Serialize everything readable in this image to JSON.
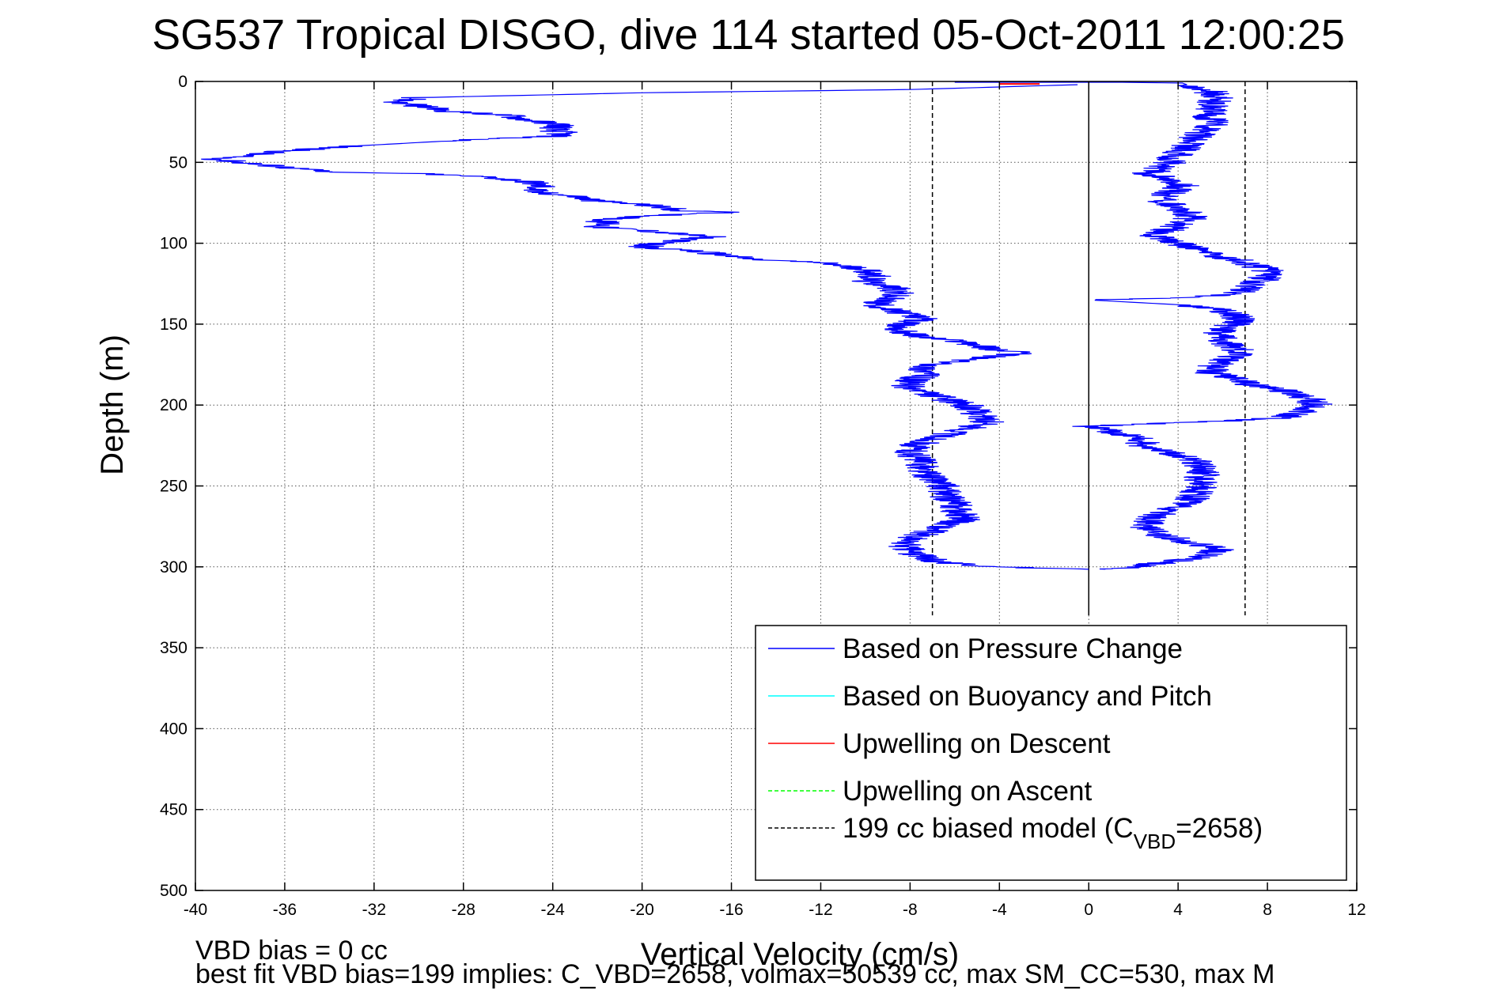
{
  "chart_data": {
    "type": "line",
    "title": "SG537 Tropical DISGO, dive 114 started 05-Oct-2011 12:00:25",
    "xlabel": "Vertical Velocity (cm/s)",
    "ylabel": "Depth (m)",
    "xlim": [
      -40,
      12
    ],
    "ylim": [
      0,
      500
    ],
    "y_reversed": true,
    "grid": true,
    "legend_position": "bottom-right",
    "xticks": [
      "-40",
      "-36",
      "-32",
      "-28",
      "-24",
      "-20",
      "-16",
      "-12",
      "-8",
      "-4",
      "0",
      "4",
      "8",
      "12"
    ],
    "yticks": [
      "0",
      "50",
      "100",
      "150",
      "200",
      "250",
      "300",
      "350",
      "400",
      "450",
      "500"
    ],
    "footnotes": [
      "VBD bias = 0 cc",
      "best fit VBD bias=199 implies: C_VBD=2658, volmax=50539 cc, max SM_CC=530, max M"
    ],
    "legend": [
      {
        "label": "Based on Pressure Change",
        "color": "#0000ff",
        "dash": "solid"
      },
      {
        "label": "Based on Buoyancy and Pitch",
        "color": "#00ffff",
        "dash": "solid"
      },
      {
        "label": "Upwelling on Descent",
        "color": "#ff0000",
        "dash": "solid"
      },
      {
        "label": "Upwelling on Ascent",
        "color": "#00ff00",
        "dash": "dashed"
      },
      {
        "label": "199 cc biased model (C",
        "sub": "VBD",
        "suffix": "=2658)",
        "color": "#000000",
        "dash": "dashed"
      }
    ],
    "series": [
      {
        "name": "Based on Pressure Change",
        "color": "#0000ff",
        "descent": [
          [
            -0.5,
            2
          ],
          [
            -8,
            5
          ],
          [
            -20,
            7
          ],
          [
            -30,
            10
          ],
          [
            -31,
            13
          ],
          [
            -30,
            15
          ],
          [
            -29,
            18
          ],
          [
            -26,
            21
          ],
          [
            -25,
            24
          ],
          [
            -23.5,
            27
          ],
          [
            -24,
            30
          ],
          [
            -23.5,
            32
          ],
          [
            -24,
            34
          ],
          [
            -26,
            35
          ],
          [
            -29,
            37
          ],
          [
            -33,
            40
          ],
          [
            -36,
            43
          ],
          [
            -38,
            46
          ],
          [
            -39,
            48
          ],
          [
            -38,
            50
          ],
          [
            -36,
            53
          ],
          [
            -34,
            56
          ],
          [
            -30,
            57
          ],
          [
            -27,
            59
          ],
          [
            -25,
            62
          ],
          [
            -24.5,
            65
          ],
          [
            -25,
            68
          ],
          [
            -23,
            71
          ],
          [
            -22,
            74
          ],
          [
            -20,
            76
          ],
          [
            -19,
            78
          ],
          [
            -18,
            80
          ],
          [
            -16,
            81
          ],
          [
            -18,
            82
          ],
          [
            -20.5,
            84
          ],
          [
            -22,
            86
          ],
          [
            -21.5,
            88
          ],
          [
            -22,
            90
          ],
          [
            -20,
            92
          ],
          [
            -18.5,
            94
          ],
          [
            -17,
            96
          ],
          [
            -18,
            98
          ],
          [
            -19.5,
            100
          ],
          [
            -20,
            103
          ],
          [
            -18,
            104
          ],
          [
            -16.5,
            107
          ],
          [
            -15,
            110
          ],
          [
            -12,
            112
          ],
          [
            -10,
            116
          ],
          [
            -9.5,
            120
          ],
          [
            -10,
            124
          ],
          [
            -9,
            126
          ],
          [
            -8.5,
            130
          ],
          [
            -9,
            134
          ],
          [
            -9.5,
            137
          ],
          [
            -9,
            141
          ],
          [
            -8,
            144
          ],
          [
            -7.5,
            147
          ],
          [
            -8.5,
            150
          ],
          [
            -8.5,
            154
          ],
          [
            -7.5,
            158
          ],
          [
            -5.5,
            161
          ],
          [
            -4.5,
            165
          ],
          [
            -3,
            168
          ],
          [
            -5,
            171
          ],
          [
            -6.5,
            174
          ],
          [
            -7.5,
            177
          ],
          [
            -7.2,
            180
          ],
          [
            -7.8,
            184
          ],
          [
            -8.2,
            188
          ],
          [
            -7.5,
            192
          ],
          [
            -6.5,
            196
          ],
          [
            -5.5,
            200
          ],
          [
            -5,
            205
          ],
          [
            -4.5,
            210
          ],
          [
            -5.5,
            215
          ],
          [
            -6.8,
            220
          ],
          [
            -7.8,
            225
          ],
          [
            -8,
            230
          ],
          [
            -7.5,
            235
          ],
          [
            -7.5,
            240
          ],
          [
            -7,
            245
          ],
          [
            -6.5,
            250
          ],
          [
            -6.5,
            255
          ],
          [
            -6,
            260
          ],
          [
            -6,
            265
          ],
          [
            -5.5,
            270
          ],
          [
            -6.5,
            275
          ],
          [
            -7.5,
            280
          ],
          [
            -8.2,
            284
          ],
          [
            -8.2,
            288
          ],
          [
            -7.8,
            292
          ],
          [
            -7,
            296
          ],
          [
            -6,
            298
          ],
          [
            -4,
            300
          ],
          [
            -2,
            301
          ],
          [
            0,
            301.5
          ]
        ],
        "ascent": [
          [
            0,
            301.5
          ],
          [
            1.5,
            301
          ],
          [
            2.5,
            299
          ],
          [
            3.5,
            297
          ],
          [
            4.5,
            295
          ],
          [
            5.5,
            292
          ],
          [
            5.8,
            289
          ],
          [
            5,
            286
          ],
          [
            4,
            283
          ],
          [
            3,
            280
          ],
          [
            2.5,
            275
          ],
          [
            2.8,
            270
          ],
          [
            3.5,
            265
          ],
          [
            4.5,
            260
          ],
          [
            4.8,
            255
          ],
          [
            5,
            250
          ],
          [
            5,
            245
          ],
          [
            5.2,
            240
          ],
          [
            4.8,
            235
          ],
          [
            3.8,
            230
          ],
          [
            2.5,
            225
          ],
          [
            2.2,
            220
          ],
          [
            0,
            213
          ],
          [
            2,
            212
          ],
          [
            4,
            211
          ],
          [
            6,
            210
          ],
          [
            8.5,
            208
          ],
          [
            9.5,
            205
          ],
          [
            10.2,
            200
          ],
          [
            9.8,
            196
          ],
          [
            9,
            192
          ],
          [
            7.5,
            188
          ],
          [
            6.5,
            184
          ],
          [
            5.5,
            180
          ],
          [
            5.5,
            176
          ],
          [
            6.2,
            172
          ],
          [
            6.8,
            168
          ],
          [
            6.5,
            164
          ],
          [
            6,
            160
          ],
          [
            5.8,
            156
          ],
          [
            6.2,
            152
          ],
          [
            6.8,
            148
          ],
          [
            6.5,
            144
          ],
          [
            5.5,
            140
          ],
          [
            4,
            138
          ],
          [
            0,
            135
          ],
          [
            3,
            134
          ],
          [
            5,
            133
          ],
          [
            6.5,
            131
          ],
          [
            7.2,
            128
          ],
          [
            7.5,
            125
          ],
          [
            7.8,
            122
          ],
          [
            8.2,
            118
          ],
          [
            7.5,
            114
          ],
          [
            6.5,
            110
          ],
          [
            5.2,
            106
          ],
          [
            4.5,
            102
          ],
          [
            3.5,
            98
          ],
          [
            2.8,
            95
          ],
          [
            3.5,
            92
          ],
          [
            4.2,
            88
          ],
          [
            4.6,
            84
          ],
          [
            4.2,
            80
          ],
          [
            3.6,
            76
          ],
          [
            3.2,
            72
          ],
          [
            3.8,
            68
          ],
          [
            4.2,
            64
          ],
          [
            3.6,
            60
          ],
          [
            2.6,
            57
          ],
          [
            3.2,
            54
          ],
          [
            3.6,
            50
          ],
          [
            3.8,
            46
          ],
          [
            4.2,
            42
          ],
          [
            4.6,
            38
          ],
          [
            4.8,
            34
          ],
          [
            5.2,
            30
          ],
          [
            5.6,
            26
          ],
          [
            5.4,
            22
          ],
          [
            5.6,
            18
          ],
          [
            5.4,
            14
          ],
          [
            5.8,
            10
          ],
          [
            5.4,
            6
          ],
          [
            4.6,
            3
          ],
          [
            4.2,
            1
          ],
          [
            1.5,
            0.5
          ],
          [
            -6,
            0.5
          ]
        ]
      },
      {
        "name": "Upwelling on Descent",
        "color": "#ff0000",
        "points": [
          [
            -4,
            1.5
          ],
          [
            -2.2,
            1.5
          ]
        ]
      },
      {
        "name": "199 cc biased model (C_VBD=2658)",
        "color": "#000000",
        "dashed": true,
        "vertical_lines": [
          -7,
          7
        ],
        "y_range": [
          0,
          330
        ]
      },
      {
        "name": "zero line",
        "color": "#000000",
        "vertical_lines": [
          0
        ],
        "y_range": [
          0,
          330
        ]
      }
    ]
  }
}
